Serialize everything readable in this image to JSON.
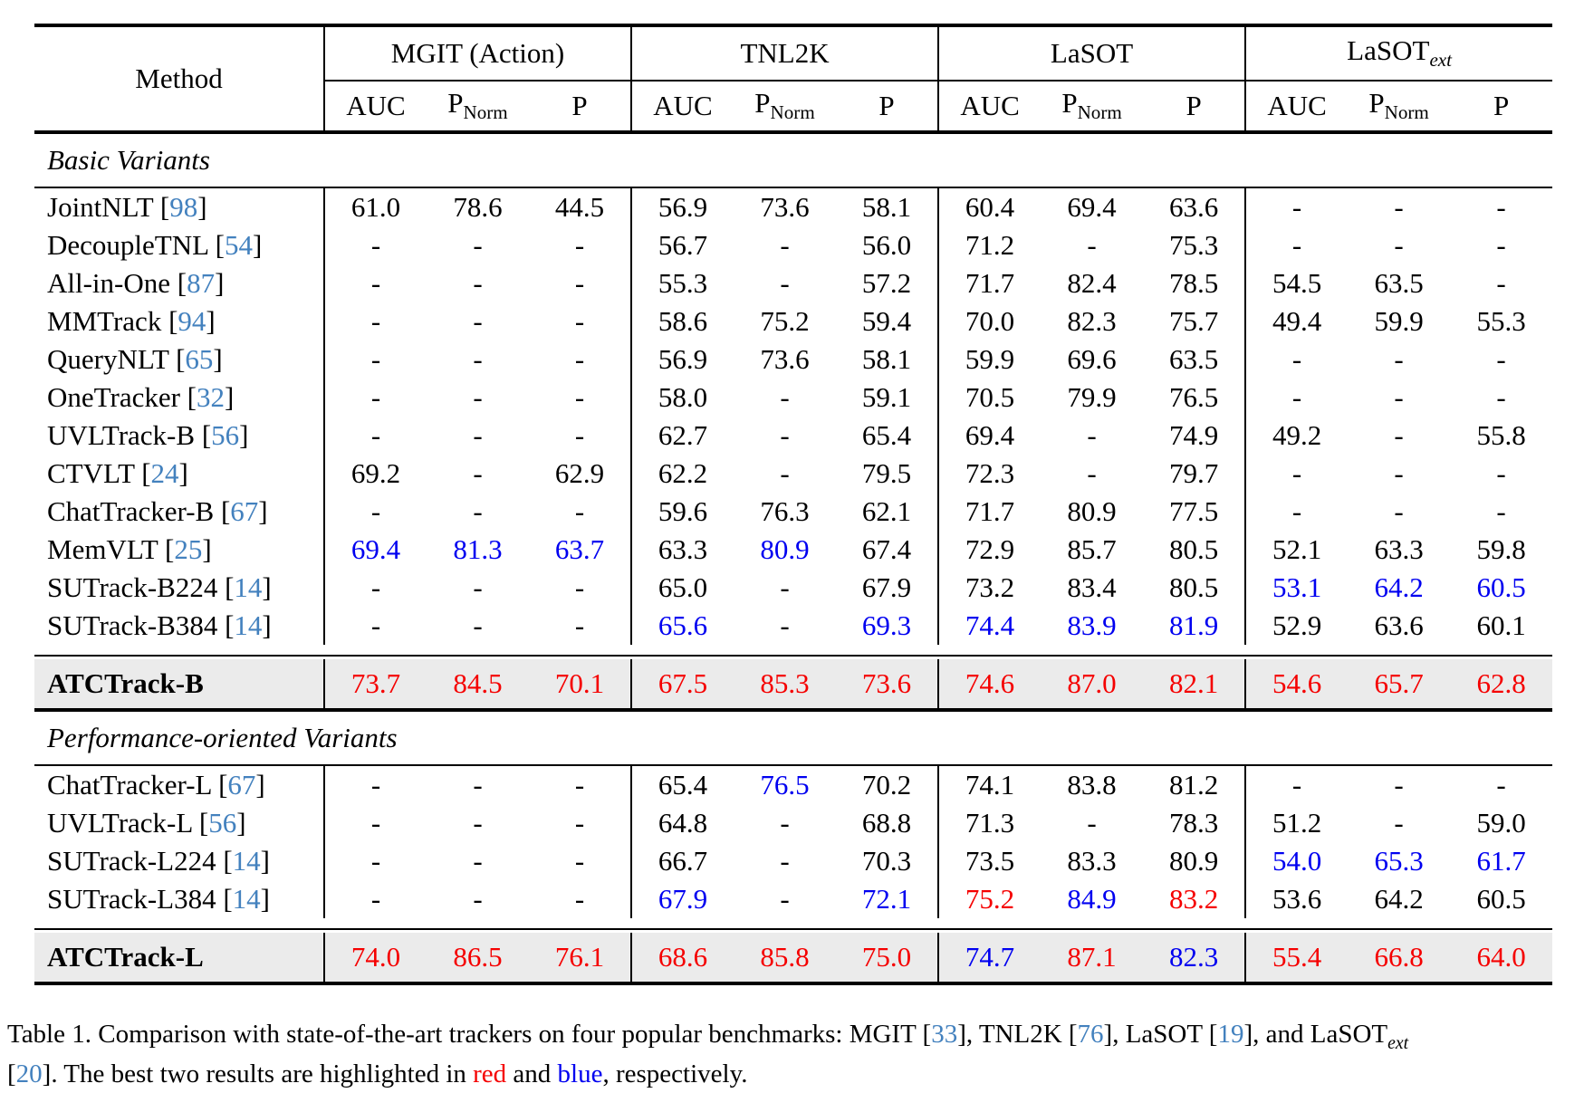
{
  "colors": {
    "best": "#f50000",
    "second_best": "#0000f0",
    "citation": "#4381be",
    "highlight_row_bg": "#ebebeb"
  },
  "table": {
    "header": {
      "method_label": "Method",
      "groups": [
        {
          "name": "MGIT (Action)"
        },
        {
          "name": "TNL2K"
        },
        {
          "name": "LaSOT"
        },
        {
          "name": "LaSOT",
          "sub": "ext"
        }
      ],
      "metrics": [
        "AUC",
        {
          "base": "P",
          "sub": "Norm"
        },
        "P"
      ]
    },
    "sections": [
      {
        "label": "Basic Variants",
        "rows": [
          {
            "method": "JointNLT",
            "cite": "98",
            "v": [
              [
                "61.0",
                "k"
              ],
              [
                "78.6",
                "k"
              ],
              [
                "44.5",
                "k"
              ],
              [
                "56.9",
                "k"
              ],
              [
                "73.6",
                "k"
              ],
              [
                "58.1",
                "k"
              ],
              [
                "60.4",
                "k"
              ],
              [
                "69.4",
                "k"
              ],
              [
                "63.6",
                "k"
              ],
              [
                "-",
                "k"
              ],
              [
                "-",
                "k"
              ],
              [
                "-",
                "k"
              ]
            ]
          },
          {
            "method": "DecoupleTNL",
            "cite": "54",
            "v": [
              [
                "-",
                "k"
              ],
              [
                "-",
                "k"
              ],
              [
                "-",
                "k"
              ],
              [
                "56.7",
                "k"
              ],
              [
                "-",
                "k"
              ],
              [
                "56.0",
                "k"
              ],
              [
                "71.2",
                "k"
              ],
              [
                "-",
                "k"
              ],
              [
                "75.3",
                "k"
              ],
              [
                "-",
                "k"
              ],
              [
                "-",
                "k"
              ],
              [
                "-",
                "k"
              ]
            ]
          },
          {
            "method": "All-in-One",
            "cite": "87",
            "v": [
              [
                "-",
                "k"
              ],
              [
                "-",
                "k"
              ],
              [
                "-",
                "k"
              ],
              [
                "55.3",
                "k"
              ],
              [
                "-",
                "k"
              ],
              [
                "57.2",
                "k"
              ],
              [
                "71.7",
                "k"
              ],
              [
                "82.4",
                "k"
              ],
              [
                "78.5",
                "k"
              ],
              [
                "54.5",
                "k"
              ],
              [
                "63.5",
                "k"
              ],
              [
                "-",
                "k"
              ]
            ]
          },
          {
            "method": "MMTrack",
            "cite": "94",
            "v": [
              [
                "-",
                "k"
              ],
              [
                "-",
                "k"
              ],
              [
                "-",
                "k"
              ],
              [
                "58.6",
                "k"
              ],
              [
                "75.2",
                "k"
              ],
              [
                "59.4",
                "k"
              ],
              [
                "70.0",
                "k"
              ],
              [
                "82.3",
                "k"
              ],
              [
                "75.7",
                "k"
              ],
              [
                "49.4",
                "k"
              ],
              [
                "59.9",
                "k"
              ],
              [
                "55.3",
                "k"
              ]
            ]
          },
          {
            "method": "QueryNLT",
            "cite": "65",
            "v": [
              [
                "-",
                "k"
              ],
              [
                "-",
                "k"
              ],
              [
                "-",
                "k"
              ],
              [
                "56.9",
                "k"
              ],
              [
                "73.6",
                "k"
              ],
              [
                "58.1",
                "k"
              ],
              [
                "59.9",
                "k"
              ],
              [
                "69.6",
                "k"
              ],
              [
                "63.5",
                "k"
              ],
              [
                "-",
                "k"
              ],
              [
                "-",
                "k"
              ],
              [
                "-",
                "k"
              ]
            ]
          },
          {
            "method": "OneTracker",
            "cite": "32",
            "v": [
              [
                "-",
                "k"
              ],
              [
                "-",
                "k"
              ],
              [
                "-",
                "k"
              ],
              [
                "58.0",
                "k"
              ],
              [
                "-",
                "k"
              ],
              [
                "59.1",
                "k"
              ],
              [
                "70.5",
                "k"
              ],
              [
                "79.9",
                "k"
              ],
              [
                "76.5",
                "k"
              ],
              [
                "-",
                "k"
              ],
              [
                "-",
                "k"
              ],
              [
                "-",
                "k"
              ]
            ]
          },
          {
            "method": "UVLTrack-B",
            "cite": "56",
            "v": [
              [
                "-",
                "k"
              ],
              [
                "-",
                "k"
              ],
              [
                "-",
                "k"
              ],
              [
                "62.7",
                "k"
              ],
              [
                "-",
                "k"
              ],
              [
                "65.4",
                "k"
              ],
              [
                "69.4",
                "k"
              ],
              [
                "-",
                "k"
              ],
              [
                "74.9",
                "k"
              ],
              [
                "49.2",
                "k"
              ],
              [
                "-",
                "k"
              ],
              [
                "55.8",
                "k"
              ]
            ]
          },
          {
            "method": "CTVLT",
            "cite": "24",
            "v": [
              [
                "69.2",
                "k"
              ],
              [
                "-",
                "k"
              ],
              [
                "62.9",
                "k"
              ],
              [
                "62.2",
                "k"
              ],
              [
                "-",
                "k"
              ],
              [
                "79.5",
                "k"
              ],
              [
                "72.3",
                "k"
              ],
              [
                "-",
                "k"
              ],
              [
                "79.7",
                "k"
              ],
              [
                "-",
                "k"
              ],
              [
                "-",
                "k"
              ],
              [
                "-",
                "k"
              ]
            ]
          },
          {
            "method": "ChatTracker-B",
            "cite": "67",
            "v": [
              [
                "-",
                "k"
              ],
              [
                "-",
                "k"
              ],
              [
                "-",
                "k"
              ],
              [
                "59.6",
                "k"
              ],
              [
                "76.3",
                "k"
              ],
              [
                "62.1",
                "k"
              ],
              [
                "71.7",
                "k"
              ],
              [
                "80.9",
                "k"
              ],
              [
                "77.5",
                "k"
              ],
              [
                "-",
                "k"
              ],
              [
                "-",
                "k"
              ],
              [
                "-",
                "k"
              ]
            ]
          },
          {
            "method": "MemVLT",
            "cite": "25",
            "v": [
              [
                "69.4",
                "b"
              ],
              [
                "81.3",
                "b"
              ],
              [
                "63.7",
                "b"
              ],
              [
                "63.3",
                "k"
              ],
              [
                "80.9",
                "b"
              ],
              [
                "67.4",
                "k"
              ],
              [
                "72.9",
                "k"
              ],
              [
                "85.7",
                "k"
              ],
              [
                "80.5",
                "k"
              ],
              [
                "52.1",
                "k"
              ],
              [
                "63.3",
                "k"
              ],
              [
                "59.8",
                "k"
              ]
            ]
          },
          {
            "method": "SUTrack-B224",
            "cite": "14",
            "v": [
              [
                "-",
                "k"
              ],
              [
                "-",
                "k"
              ],
              [
                "-",
                "k"
              ],
              [
                "65.0",
                "k"
              ],
              [
                "-",
                "k"
              ],
              [
                "67.9",
                "k"
              ],
              [
                "73.2",
                "k"
              ],
              [
                "83.4",
                "k"
              ],
              [
                "80.5",
                "k"
              ],
              [
                "53.1",
                "b"
              ],
              [
                "64.2",
                "b"
              ],
              [
                "60.5",
                "b"
              ]
            ]
          },
          {
            "method": "SUTrack-B384",
            "cite": "14",
            "v": [
              [
                "-",
                "k"
              ],
              [
                "-",
                "k"
              ],
              [
                "-",
                "k"
              ],
              [
                "65.6",
                "b"
              ],
              [
                "-",
                "k"
              ],
              [
                "69.3",
                "b"
              ],
              [
                "74.4",
                "b"
              ],
              [
                "83.9",
                "b"
              ],
              [
                "81.9",
                "b"
              ],
              [
                "52.9",
                "k"
              ],
              [
                "63.6",
                "k"
              ],
              [
                "60.1",
                "k"
              ]
            ]
          }
        ],
        "highlight": {
          "method": "ATCTrack-B",
          "v": [
            [
              "73.7",
              "r"
            ],
            [
              "84.5",
              "r"
            ],
            [
              "70.1",
              "r"
            ],
            [
              "67.5",
              "r"
            ],
            [
              "85.3",
              "r"
            ],
            [
              "73.6",
              "r"
            ],
            [
              "74.6",
              "r"
            ],
            [
              "87.0",
              "r"
            ],
            [
              "82.1",
              "r"
            ],
            [
              "54.6",
              "r"
            ],
            [
              "65.7",
              "r"
            ],
            [
              "62.8",
              "r"
            ]
          ]
        }
      },
      {
        "label": "Performance-oriented Variants",
        "rows": [
          {
            "method": "ChatTracker-L",
            "cite": "67",
            "v": [
              [
                "-",
                "k"
              ],
              [
                "-",
                "k"
              ],
              [
                "-",
                "k"
              ],
              [
                "65.4",
                "k"
              ],
              [
                "76.5",
                "b"
              ],
              [
                "70.2",
                "k"
              ],
              [
                "74.1",
                "k"
              ],
              [
                "83.8",
                "k"
              ],
              [
                "81.2",
                "k"
              ],
              [
                "-",
                "k"
              ],
              [
                "-",
                "k"
              ],
              [
                "-",
                "k"
              ]
            ]
          },
          {
            "method": "UVLTrack-L",
            "cite": "56",
            "v": [
              [
                "-",
                "k"
              ],
              [
                "-",
                "k"
              ],
              [
                "-",
                "k"
              ],
              [
                "64.8",
                "k"
              ],
              [
                "-",
                "k"
              ],
              [
                "68.8",
                "k"
              ],
              [
                "71.3",
                "k"
              ],
              [
                "-",
                "k"
              ],
              [
                "78.3",
                "k"
              ],
              [
                "51.2",
                "k"
              ],
              [
                "-",
                "k"
              ],
              [
                "59.0",
                "k"
              ]
            ]
          },
          {
            "method": "SUTrack-L224",
            "cite": "14",
            "v": [
              [
                "-",
                "k"
              ],
              [
                "-",
                "k"
              ],
              [
                "-",
                "k"
              ],
              [
                "66.7",
                "k"
              ],
              [
                "-",
                "k"
              ],
              [
                "70.3",
                "k"
              ],
              [
                "73.5",
                "k"
              ],
              [
                "83.3",
                "k"
              ],
              [
                "80.9",
                "k"
              ],
              [
                "54.0",
                "b"
              ],
              [
                "65.3",
                "b"
              ],
              [
                "61.7",
                "b"
              ]
            ]
          },
          {
            "method": "SUTrack-L384",
            "cite": "14",
            "v": [
              [
                "-",
                "k"
              ],
              [
                "-",
                "k"
              ],
              [
                "-",
                "k"
              ],
              [
                "67.9",
                "b"
              ],
              [
                "-",
                "k"
              ],
              [
                "72.1",
                "b"
              ],
              [
                "75.2",
                "r"
              ],
              [
                "84.9",
                "b"
              ],
              [
                "83.2",
                "r"
              ],
              [
                "53.6",
                "k"
              ],
              [
                "64.2",
                "k"
              ],
              [
                "60.5",
                "k"
              ]
            ]
          }
        ],
        "highlight": {
          "method": "ATCTrack-L",
          "v": [
            [
              "74.0",
              "r"
            ],
            [
              "86.5",
              "r"
            ],
            [
              "76.1",
              "r"
            ],
            [
              "68.6",
              "r"
            ],
            [
              "85.8",
              "r"
            ],
            [
              "75.0",
              "r"
            ],
            [
              "74.7",
              "b"
            ],
            [
              "87.1",
              "r"
            ],
            [
              "82.3",
              "b"
            ],
            [
              "55.4",
              "r"
            ],
            [
              "66.8",
              "r"
            ],
            [
              "64.0",
              "r"
            ]
          ]
        }
      }
    ]
  },
  "caption": {
    "segments": [
      {
        "t": "Table 1.  Comparison with state-of-the-art trackers on four popular benchmarks:  MGIT ["
      },
      {
        "t": "33",
        "c": "cite"
      },
      {
        "t": "], TNL2K ["
      },
      {
        "t": "76",
        "c": "cite"
      },
      {
        "t": "], LaSOT ["
      },
      {
        "t": "19",
        "c": "cite"
      },
      {
        "t": "], and LaSOT"
      },
      {
        "t": "ext",
        "sub": true
      },
      {
        "br": true
      },
      {
        "t": "["
      },
      {
        "t": "20",
        "c": "cite"
      },
      {
        "t": "]. The best two results are highlighted in "
      },
      {
        "t": "red",
        "c": "red"
      },
      {
        "t": " and "
      },
      {
        "t": "blue",
        "c": "blue"
      },
      {
        "t": ", respectively."
      }
    ]
  }
}
